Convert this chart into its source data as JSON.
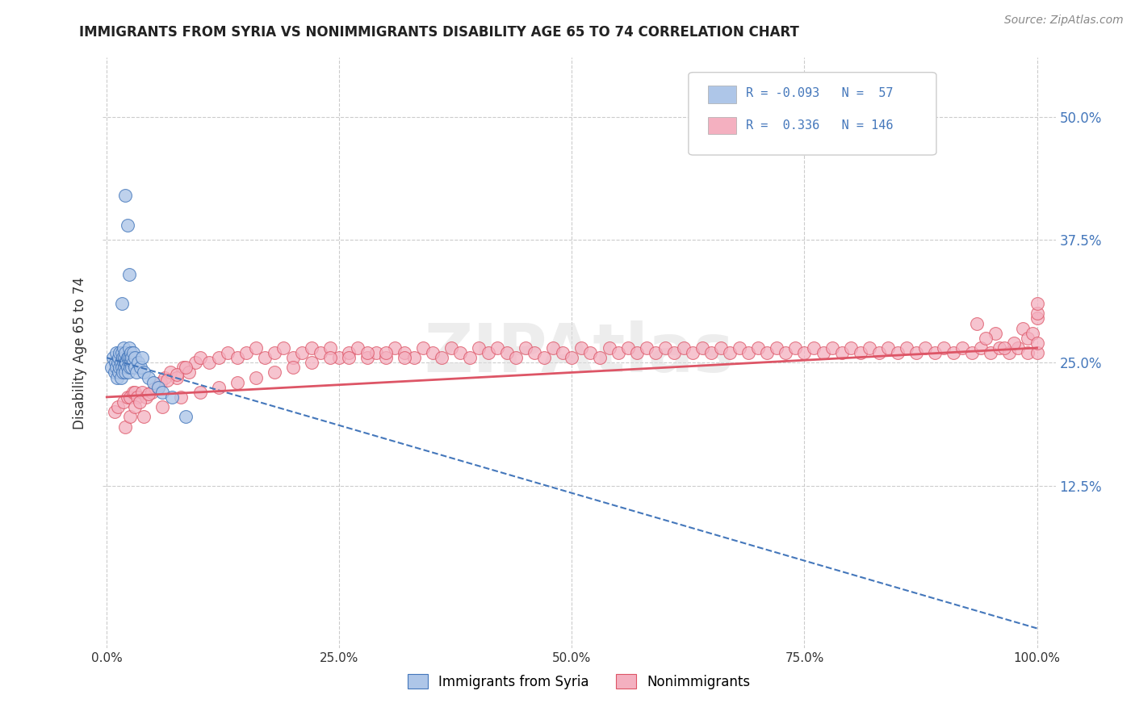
{
  "title": "IMMIGRANTS FROM SYRIA VS NONIMMIGRANTS DISABILITY AGE 65 TO 74 CORRELATION CHART",
  "source_text": "Source: ZipAtlas.com",
  "ylabel": "Disability Age 65 to 74",
  "xlim": [
    -0.005,
    1.02
  ],
  "ylim": [
    -0.04,
    0.56
  ],
  "xticks": [
    0,
    0.25,
    0.5,
    0.75,
    1.0
  ],
  "xtick_labels": [
    "0.0%",
    "25.0%",
    "50.0%",
    "75.0%",
    "100.0%"
  ],
  "ytick_positions": [
    0.125,
    0.25,
    0.375,
    0.5
  ],
  "ytick_labels": [
    "12.5%",
    "25.0%",
    "37.5%",
    "50.0%"
  ],
  "R1": -0.093,
  "N1": 57,
  "R2": 0.336,
  "N2": 146,
  "color_blue": "#aec6e8",
  "color_pink": "#f4b0c0",
  "trend_blue": "#4477bb",
  "trend_pink": "#dd5566",
  "legend_label1": "Immigrants from Syria",
  "legend_label2": "Nonimmigrants",
  "blue_x": [
    0.005,
    0.007,
    0.008,
    0.009,
    0.01,
    0.01,
    0.011,
    0.012,
    0.013,
    0.013,
    0.014,
    0.014,
    0.015,
    0.015,
    0.016,
    0.016,
    0.017,
    0.017,
    0.018,
    0.018,
    0.019,
    0.019,
    0.02,
    0.02,
    0.02,
    0.021,
    0.022,
    0.022,
    0.023,
    0.023,
    0.024,
    0.024,
    0.025,
    0.025,
    0.026,
    0.026,
    0.027,
    0.027,
    0.028,
    0.028,
    0.03,
    0.03,
    0.032,
    0.034,
    0.036,
    0.038,
    0.04,
    0.045,
    0.05,
    0.055,
    0.06,
    0.07,
    0.085,
    0.02,
    0.022,
    0.024,
    0.016
  ],
  "blue_y": [
    0.245,
    0.255,
    0.24,
    0.25,
    0.26,
    0.245,
    0.235,
    0.25,
    0.24,
    0.255,
    0.245,
    0.26,
    0.235,
    0.25,
    0.245,
    0.26,
    0.24,
    0.255,
    0.25,
    0.265,
    0.245,
    0.255,
    0.24,
    0.25,
    0.26,
    0.25,
    0.245,
    0.255,
    0.24,
    0.255,
    0.25,
    0.265,
    0.245,
    0.255,
    0.25,
    0.26,
    0.245,
    0.255,
    0.25,
    0.26,
    0.245,
    0.255,
    0.24,
    0.25,
    0.245,
    0.255,
    0.24,
    0.235,
    0.23,
    0.225,
    0.22,
    0.215,
    0.195,
    0.42,
    0.39,
    0.34,
    0.31
  ],
  "pink_x": [
    0.008,
    0.012,
    0.018,
    0.022,
    0.025,
    0.028,
    0.03,
    0.033,
    0.038,
    0.042,
    0.048,
    0.052,
    0.058,
    0.062,
    0.068,
    0.075,
    0.082,
    0.088,
    0.095,
    0.1,
    0.11,
    0.12,
    0.13,
    0.14,
    0.15,
    0.16,
    0.17,
    0.18,
    0.19,
    0.2,
    0.21,
    0.22,
    0.23,
    0.24,
    0.25,
    0.26,
    0.27,
    0.28,
    0.29,
    0.3,
    0.31,
    0.32,
    0.33,
    0.34,
    0.35,
    0.36,
    0.37,
    0.38,
    0.39,
    0.4,
    0.41,
    0.42,
    0.43,
    0.44,
    0.45,
    0.46,
    0.47,
    0.48,
    0.49,
    0.5,
    0.51,
    0.52,
    0.53,
    0.54,
    0.55,
    0.56,
    0.57,
    0.58,
    0.59,
    0.6,
    0.61,
    0.62,
    0.63,
    0.64,
    0.65,
    0.66,
    0.67,
    0.68,
    0.69,
    0.7,
    0.71,
    0.72,
    0.73,
    0.74,
    0.75,
    0.76,
    0.77,
    0.78,
    0.79,
    0.8,
    0.81,
    0.82,
    0.83,
    0.84,
    0.85,
    0.86,
    0.87,
    0.88,
    0.89,
    0.9,
    0.91,
    0.92,
    0.93,
    0.94,
    0.95,
    0.96,
    0.97,
    0.98,
    0.99,
    1.0,
    0.985,
    0.99,
    0.995,
    1.0,
    1.0,
    1.0,
    1.0,
    0.975,
    0.965,
    0.955,
    0.945,
    0.935,
    0.04,
    0.06,
    0.08,
    0.1,
    0.12,
    0.14,
    0.16,
    0.18,
    0.2,
    0.22,
    0.24,
    0.26,
    0.28,
    0.3,
    0.32,
    0.02,
    0.025,
    0.03,
    0.035,
    0.045,
    0.055,
    0.065,
    0.075,
    0.085
  ],
  "pink_y": [
    0.2,
    0.205,
    0.21,
    0.215,
    0.215,
    0.22,
    0.22,
    0.215,
    0.22,
    0.215,
    0.22,
    0.225,
    0.23,
    0.235,
    0.24,
    0.235,
    0.245,
    0.24,
    0.25,
    0.255,
    0.25,
    0.255,
    0.26,
    0.255,
    0.26,
    0.265,
    0.255,
    0.26,
    0.265,
    0.255,
    0.26,
    0.265,
    0.26,
    0.265,
    0.255,
    0.26,
    0.265,
    0.255,
    0.26,
    0.255,
    0.265,
    0.26,
    0.255,
    0.265,
    0.26,
    0.255,
    0.265,
    0.26,
    0.255,
    0.265,
    0.26,
    0.265,
    0.26,
    0.255,
    0.265,
    0.26,
    0.255,
    0.265,
    0.26,
    0.255,
    0.265,
    0.26,
    0.255,
    0.265,
    0.26,
    0.265,
    0.26,
    0.265,
    0.26,
    0.265,
    0.26,
    0.265,
    0.26,
    0.265,
    0.26,
    0.265,
    0.26,
    0.265,
    0.26,
    0.265,
    0.26,
    0.265,
    0.26,
    0.265,
    0.26,
    0.265,
    0.26,
    0.265,
    0.26,
    0.265,
    0.26,
    0.265,
    0.26,
    0.265,
    0.26,
    0.265,
    0.26,
    0.265,
    0.26,
    0.265,
    0.26,
    0.265,
    0.26,
    0.265,
    0.26,
    0.265,
    0.26,
    0.265,
    0.26,
    0.26,
    0.285,
    0.275,
    0.28,
    0.27,
    0.295,
    0.3,
    0.31,
    0.27,
    0.265,
    0.28,
    0.275,
    0.29,
    0.195,
    0.205,
    0.215,
    0.22,
    0.225,
    0.23,
    0.235,
    0.24,
    0.245,
    0.25,
    0.255,
    0.255,
    0.26,
    0.26,
    0.255,
    0.185,
    0.195,
    0.205,
    0.21,
    0.218,
    0.225,
    0.232,
    0.238,
    0.245
  ],
  "watermark_text": "ZIPAtlas",
  "background_color": "#ffffff",
  "grid_color": "#cccccc",
  "blue_trend_start_x": 0.0,
  "blue_trend_start_y": 0.255,
  "blue_trend_end_x": 1.0,
  "blue_trend_end_y": -0.02,
  "pink_trend_start_x": 0.0,
  "pink_trend_start_y": 0.215,
  "pink_trend_end_x": 1.0,
  "pink_trend_end_y": 0.265
}
